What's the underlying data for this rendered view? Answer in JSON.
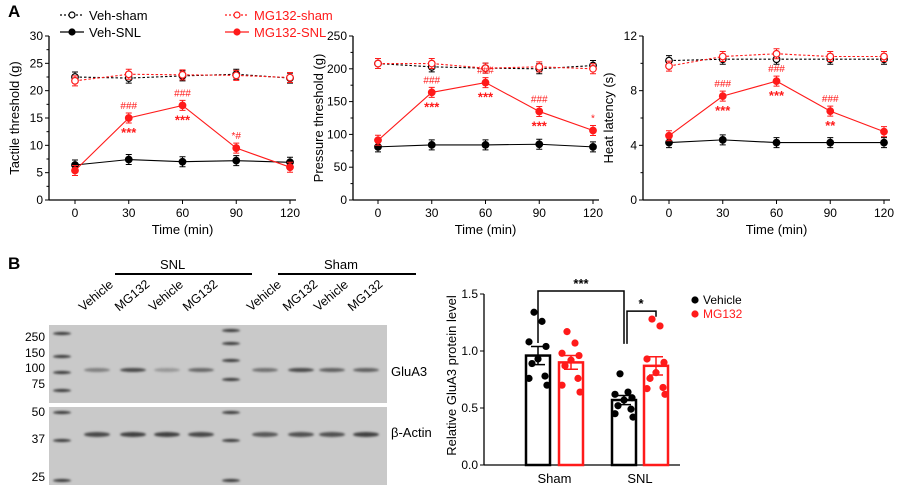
{
  "panels": {
    "a": "A",
    "b": "B"
  },
  "colors": {
    "vehicle": "#000000",
    "mg132": "#ff1a1a"
  },
  "legend": [
    "Veh-sham",
    "MG132-sham",
    "Veh-SNL",
    "MG132-SNL"
  ],
  "chart_data": [
    {
      "type": "line",
      "ylabel": "Tactile threshold (g)",
      "xlabel": "Time (min)",
      "x": [
        0,
        30,
        60,
        90,
        120
      ],
      "ylim": [
        0,
        30
      ],
      "yticks": [
        0,
        5,
        10,
        15,
        20,
        25,
        30
      ],
      "series": [
        {
          "name": "Veh-sham",
          "values": [
            22.5,
            22.3,
            22.7,
            23.0,
            22.3
          ]
        },
        {
          "name": "MG132-sham",
          "values": [
            21.8,
            23.0,
            22.9,
            22.8,
            22.4
          ]
        },
        {
          "name": "Veh-SNL",
          "values": [
            6.4,
            7.4,
            7.0,
            7.2,
            6.9
          ]
        },
        {
          "name": "MG132-SNL",
          "values": [
            5.4,
            15.0,
            17.3,
            9.5,
            6.0
          ]
        }
      ],
      "annotations": [
        {
          "x": 30,
          "above": "###",
          "below": "***"
        },
        {
          "x": 60,
          "above": "###",
          "below": "***"
        },
        {
          "x": 90,
          "above": "*#",
          "below": ""
        }
      ]
    },
    {
      "type": "line",
      "ylabel": "Pressure threshold (g)",
      "xlabel": "Time (min)",
      "x": [
        0,
        30,
        60,
        90,
        120
      ],
      "ylim": [
        0,
        250
      ],
      "yticks": [
        0,
        50,
        100,
        150,
        200,
        250
      ],
      "series": [
        {
          "name": "Veh-sham",
          "values": [
            208,
            203,
            201,
            200,
            205
          ]
        },
        {
          "name": "MG132-sham",
          "values": [
            208,
            208,
            201,
            203,
            200
          ]
        },
        {
          "name": "Veh-SNL",
          "values": [
            81,
            84,
            84,
            85,
            81
          ]
        },
        {
          "name": "MG132-SNL",
          "values": [
            91,
            164,
            179,
            135,
            106
          ]
        }
      ],
      "annotations": [
        {
          "x": 30,
          "above": "###",
          "below": "***"
        },
        {
          "x": 60,
          "above": "###",
          "below": "***"
        },
        {
          "x": 90,
          "above": "###",
          "below": "***"
        },
        {
          "x": 120,
          "above": "*",
          "below": ""
        }
      ]
    },
    {
      "type": "line",
      "ylabel": "Heat latency (s)",
      "xlabel": "Time (min)",
      "x": [
        0,
        30,
        60,
        90,
        120
      ],
      "ylim": [
        0,
        12
      ],
      "yticks": [
        0,
        4,
        8,
        12
      ],
      "series": [
        {
          "name": "Veh-sham",
          "values": [
            10.2,
            10.3,
            10.3,
            10.3,
            10.3
          ]
        },
        {
          "name": "MG132-sham",
          "values": [
            9.8,
            10.5,
            10.7,
            10.5,
            10.5
          ]
        },
        {
          "name": "Veh-SNL",
          "values": [
            4.2,
            4.4,
            4.2,
            4.2,
            4.2
          ]
        },
        {
          "name": "MG132-SNL",
          "values": [
            4.7,
            7.6,
            8.7,
            6.5,
            5.0
          ]
        }
      ],
      "annotations": [
        {
          "x": 30,
          "above": "###",
          "below": "***"
        },
        {
          "x": 60,
          "above": "###",
          "below": "***"
        },
        {
          "x": 90,
          "above": "###",
          "below": "**"
        }
      ]
    },
    {
      "type": "bar",
      "ylabel": "Relative GluA3 protein level",
      "categories": [
        "Sham",
        "SNL"
      ],
      "ylim": [
        0,
        1.5
      ],
      "yticks": [
        "0.0",
        "0.5",
        "1.0",
        "1.5"
      ],
      "series": [
        {
          "name": "Vehicle",
          "values": [
            0.96,
            0.57
          ],
          "sem": [
            0.08,
            0.04
          ],
          "points": [
            [
              1.34,
              1.26,
              1.08,
              1.04,
              0.93,
              0.89,
              0.78,
              0.76,
              0.7
            ],
            [
              0.8,
              0.64,
              0.62,
              0.59,
              0.57,
              0.52,
              0.49,
              0.45,
              0.42
            ]
          ]
        },
        {
          "name": "MG132",
          "values": [
            0.9,
            0.87
          ],
          "sem": [
            0.06,
            0.08
          ],
          "points": [
            [
              1.17,
              1.07,
              0.98,
              0.96,
              0.92,
              0.87,
              0.76,
              0.7,
              0.64
            ],
            [
              1.28,
              1.22,
              0.93,
              0.9,
              0.81,
              0.76,
              0.68,
              0.67,
              0.62
            ]
          ]
        }
      ],
      "significance": [
        {
          "label": "***",
          "between": "Sham Vehicle vs SNL Vehicle"
        },
        {
          "label": "*",
          "between": "SNL Vehicle vs SNL MG132"
        }
      ]
    }
  ],
  "blot": {
    "groups": [
      "SNL",
      "Sham"
    ],
    "lanes": [
      "Vehicle",
      "MG132",
      "Vehicle",
      "MG132",
      "Vehicle",
      "MG132",
      "Vehicle",
      "MG132"
    ],
    "markers_top": [
      "250",
      "150",
      "100",
      "75"
    ],
    "markers_bottom": [
      "50",
      "37",
      "25"
    ],
    "proteins": [
      "GluA3",
      "β-Actin"
    ],
    "glua3_intensity": [
      0.45,
      0.8,
      0.3,
      0.6,
      0.55,
      0.8,
      0.65,
      0.65
    ],
    "actin_intensity": [
      0.8,
      0.85,
      0.85,
      0.8,
      0.7,
      0.75,
      0.75,
      0.85
    ]
  }
}
